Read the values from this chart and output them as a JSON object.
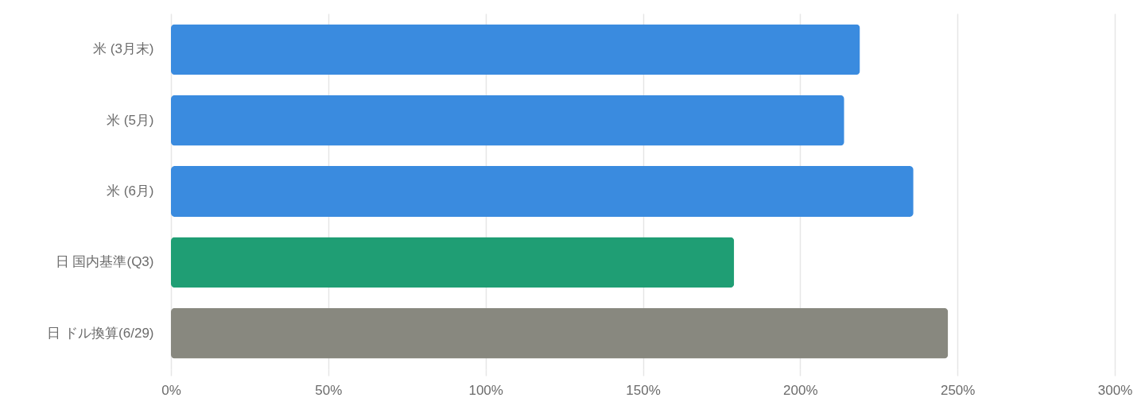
{
  "chart_data": {
    "type": "bar",
    "orientation": "horizontal",
    "categories": [
      "米 (3月末)",
      "米 (5月)",
      "米 (6月)",
      "日 国内基準(Q3)",
      "日 ドル換算(6/29)"
    ],
    "values": [
      219,
      214,
      236,
      179,
      247
    ],
    "colors": [
      "#3a8bdf",
      "#3a8bdf",
      "#3a8bdf",
      "#1f9e74",
      "#88887f"
    ],
    "xlim": [
      0,
      300
    ],
    "xticks": [
      {
        "value": 0,
        "label": "0%"
      },
      {
        "value": 50,
        "label": "50%"
      },
      {
        "value": 100,
        "label": "100%"
      },
      {
        "value": 150,
        "label": "150%"
      },
      {
        "value": 200,
        "label": "200%"
      },
      {
        "value": 250,
        "label": "250%"
      },
      {
        "value": 300,
        "label": "300%"
      }
    ],
    "grid": true
  }
}
